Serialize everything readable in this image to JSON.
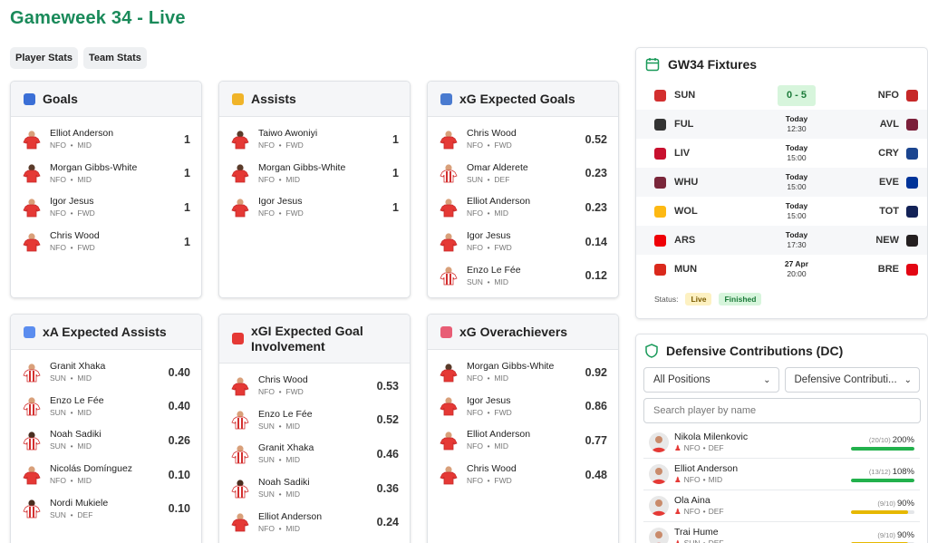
{
  "page": {
    "title": "Gameweek 34 - Live"
  },
  "tabs": [
    {
      "label": "Player Stats"
    },
    {
      "label": "Team Stats"
    }
  ],
  "cards": [
    {
      "title": "Goals",
      "icon": "football-icon",
      "players": [
        {
          "name": "Elliot Anderson",
          "team": "NFO",
          "pos": "MID",
          "value": "1",
          "kit": "nfo"
        },
        {
          "name": "Morgan Gibbs-White",
          "team": "NFO",
          "pos": "MID",
          "value": "1",
          "kit": "dark"
        },
        {
          "name": "Igor Jesus",
          "team": "NFO",
          "pos": "FWD",
          "value": "1",
          "kit": "nfo"
        },
        {
          "name": "Chris Wood",
          "team": "NFO",
          "pos": "FWD",
          "value": "1",
          "kit": "nfo"
        }
      ]
    },
    {
      "title": "Assists",
      "icon": "handshake-icon",
      "players": [
        {
          "name": "Taiwo Awoniyi",
          "team": "NFO",
          "pos": "FWD",
          "value": "1",
          "kit": "dark"
        },
        {
          "name": "Morgan Gibbs-White",
          "team": "NFO",
          "pos": "MID",
          "value": "1",
          "kit": "dark"
        },
        {
          "name": "Igor Jesus",
          "team": "NFO",
          "pos": "FWD",
          "value": "1",
          "kit": "nfo"
        }
      ]
    },
    {
      "title": "xG Expected Goals",
      "icon": "bar-chart-icon",
      "players": [
        {
          "name": "Chris Wood",
          "team": "NFO",
          "pos": "FWD",
          "value": "0.52",
          "kit": "nfo"
        },
        {
          "name": "Omar Alderete",
          "team": "SUN",
          "pos": "DEF",
          "value": "0.23",
          "kit": "sun"
        },
        {
          "name": "Elliot Anderson",
          "team": "NFO",
          "pos": "MID",
          "value": "0.23",
          "kit": "nfo"
        },
        {
          "name": "Igor Jesus",
          "team": "NFO",
          "pos": "FWD",
          "value": "0.14",
          "kit": "nfo"
        },
        {
          "name": "Enzo Le Fée",
          "team": "SUN",
          "pos": "MID",
          "value": "0.12",
          "kit": "sun"
        }
      ]
    },
    {
      "title": "xA Expected Assists",
      "icon": "trend-chart-icon",
      "players": [
        {
          "name": "Granit Xhaka",
          "team": "SUN",
          "pos": "MID",
          "value": "0.40",
          "kit": "sun"
        },
        {
          "name": "Enzo Le Fée",
          "team": "SUN",
          "pos": "MID",
          "value": "0.40",
          "kit": "sun"
        },
        {
          "name": "Noah Sadiki",
          "team": "SUN",
          "pos": "MID",
          "value": "0.26",
          "kit": "sundark"
        },
        {
          "name": "Nicolás Domínguez",
          "team": "NFO",
          "pos": "MID",
          "value": "0.10",
          "kit": "nfo"
        },
        {
          "name": "Nordi Mukiele",
          "team": "SUN",
          "pos": "DEF",
          "value": "0.10",
          "kit": "sundark"
        }
      ]
    },
    {
      "title": "xGI Expected Goal Involvement",
      "icon": "target-icon",
      "players": [
        {
          "name": "Chris Wood",
          "team": "NFO",
          "pos": "FWD",
          "value": "0.53",
          "kit": "nfo"
        },
        {
          "name": "Enzo Le Fée",
          "team": "SUN",
          "pos": "MID",
          "value": "0.52",
          "kit": "sun"
        },
        {
          "name": "Granit Xhaka",
          "team": "SUN",
          "pos": "MID",
          "value": "0.46",
          "kit": "sun"
        },
        {
          "name": "Noah Sadiki",
          "team": "SUN",
          "pos": "MID",
          "value": "0.36",
          "kit": "sundark"
        },
        {
          "name": "Elliot Anderson",
          "team": "NFO",
          "pos": "MID",
          "value": "0.24",
          "kit": "nfo"
        }
      ]
    },
    {
      "title": "xG Overachievers",
      "icon": "rocket-icon",
      "players": [
        {
          "name": "Morgan Gibbs-White",
          "team": "NFO",
          "pos": "MID",
          "value": "0.92",
          "kit": "dark"
        },
        {
          "name": "Igor Jesus",
          "team": "NFO",
          "pos": "FWD",
          "value": "0.86",
          "kit": "nfo"
        },
        {
          "name": "Elliot Anderson",
          "team": "NFO",
          "pos": "MID",
          "value": "0.77",
          "kit": "nfo"
        },
        {
          "name": "Chris Wood",
          "team": "NFO",
          "pos": "FWD",
          "value": "0.48",
          "kit": "nfo"
        }
      ]
    }
  ],
  "fixtures": {
    "title": "GW34 Fixtures",
    "rows": [
      {
        "home": "SUN",
        "away": "NFO",
        "score": "0 - 5",
        "day": "",
        "time": "",
        "home_color": "#d32f2f",
        "away_color": "#c62828"
      },
      {
        "home": "FUL",
        "away": "AVL",
        "score": "",
        "day": "Today",
        "time": "12:30",
        "home_color": "#333333",
        "away_color": "#7b1f3a"
      },
      {
        "home": "LIV",
        "away": "CRY",
        "score": "",
        "day": "Today",
        "time": "15:00",
        "home_color": "#c8102e",
        "away_color": "#1b458f"
      },
      {
        "home": "WHU",
        "away": "EVE",
        "score": "",
        "day": "Today",
        "time": "15:00",
        "home_color": "#7a263a",
        "away_color": "#003399"
      },
      {
        "home": "WOL",
        "away": "TOT",
        "score": "",
        "day": "Today",
        "time": "15:00",
        "home_color": "#fdb913",
        "away_color": "#132257"
      },
      {
        "home": "ARS",
        "away": "NEW",
        "score": "",
        "day": "Today",
        "time": "17:30",
        "home_color": "#ef0107",
        "away_color": "#241f20"
      },
      {
        "home": "MUN",
        "away": "BRE",
        "score": "",
        "day": "27 Apr",
        "time": "20:00",
        "home_color": "#da291c",
        "away_color": "#e30613"
      }
    ],
    "status_label": "Status:",
    "live_label": "Live",
    "finished_label": "Finished"
  },
  "defensive": {
    "title": "Defensive Contributions (DC)",
    "position_select": "All Positions",
    "metric_select": "Defensive Contributi...",
    "search_placeholder": "Search player by name",
    "rows": [
      {
        "name": "Nikola Milenkovic",
        "team": "NFO",
        "pos": "DEF",
        "ratio": "(20/10)",
        "pct": "200%",
        "fill": 1.0,
        "color": "#22b14c"
      },
      {
        "name": "Elliot Anderson",
        "team": "NFO",
        "pos": "MID",
        "ratio": "(13/12)",
        "pct": "108%",
        "fill": 1.0,
        "color": "#22b14c"
      },
      {
        "name": "Ola Aina",
        "team": "NFO",
        "pos": "DEF",
        "ratio": "(9/10)",
        "pct": "90%",
        "fill": 0.9,
        "color": "#e6b800"
      },
      {
        "name": "Trai Hume",
        "team": "SUN",
        "pos": "DEF",
        "ratio": "(9/10)",
        "pct": "90%",
        "fill": 0.9,
        "color": "#e6b800"
      }
    ]
  }
}
